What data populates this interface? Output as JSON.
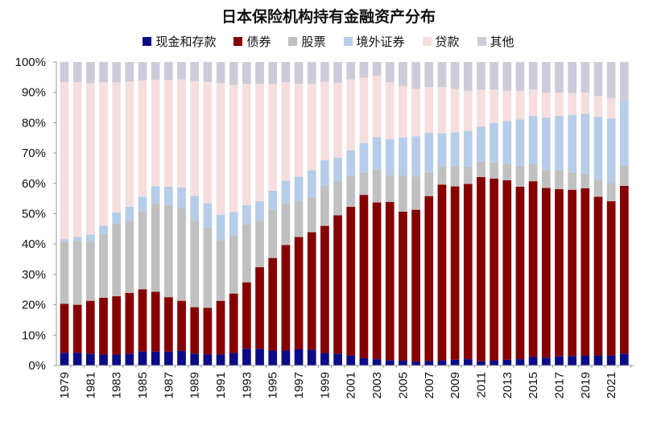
{
  "chart_data": {
    "type": "bar",
    "stacked": true,
    "title": "日本保险机构持有金融资产分布",
    "legend_position": "top",
    "grid": false,
    "ylim": [
      0,
      100
    ],
    "y_ticks": [
      "0%",
      "10%",
      "20%",
      "30%",
      "40%",
      "50%",
      "60%",
      "70%",
      "80%",
      "90%",
      "100%"
    ],
    "categories": [
      "1979",
      "1980",
      "1981",
      "1982",
      "1983",
      "1984",
      "1985",
      "1986",
      "1987",
      "1988",
      "1989",
      "1990",
      "1991",
      "1992",
      "1993",
      "1994",
      "1995",
      "1996",
      "1997",
      "1998",
      "1999",
      "2000",
      "2001",
      "2002",
      "2003",
      "2004",
      "2005",
      "2006",
      "2007",
      "2008",
      "2009",
      "2010",
      "2011",
      "2012",
      "2013",
      "2014",
      "2015",
      "2016",
      "2017",
      "2018",
      "2019",
      "2020",
      "2021",
      "2022"
    ],
    "x_tick_labels": [
      "1979",
      "1981",
      "1983",
      "1985",
      "1987",
      "1989",
      "1991",
      "1993",
      "1995",
      "1997",
      "1999",
      "2001",
      "2003",
      "2005",
      "2007",
      "2009",
      "2011",
      "2013",
      "2015",
      "2017",
      "2019",
      "2021"
    ],
    "series": [
      {
        "name": "现金和存款",
        "color": "#0b0b86",
        "values": [
          4.2,
          4.2,
          3.9,
          3.6,
          3.6,
          3.9,
          4.6,
          4.6,
          4.6,
          4.8,
          3.9,
          3.6,
          3.6,
          4.1,
          5.5,
          5.5,
          4.9,
          4.9,
          5.3,
          5.2,
          4.1,
          3.9,
          3.3,
          2.4,
          2.1,
          1.7,
          1.6,
          1.3,
          1.5,
          1.6,
          1.9,
          2.1,
          1.4,
          1.6,
          1.9,
          2.1,
          2.8,
          2.6,
          3.0,
          3.1,
          3.3,
          3.3,
          3.3,
          3.9
        ]
      },
      {
        "name": "债券",
        "color": "#860000",
        "values": [
          16.1,
          15.8,
          17.4,
          18.7,
          19.2,
          20.0,
          20.5,
          19.7,
          17.9,
          16.5,
          15.3,
          15.4,
          17.7,
          19.6,
          21.9,
          26.9,
          30.5,
          34.8,
          37.0,
          38.7,
          41.9,
          45.6,
          49.0,
          53.8,
          51.6,
          52.2,
          49.1,
          50.0,
          54.3,
          58.0,
          57.1,
          57.7,
          60.7,
          60.0,
          59.1,
          56.8,
          57.9,
          55.9,
          55.1,
          54.8,
          55.1,
          52.3,
          50.8,
          55.3
        ]
      },
      {
        "name": "股票",
        "color": "#c0c0c0",
        "values": [
          20.3,
          21.0,
          19.4,
          20.9,
          24.0,
          23.8,
          25.6,
          29.1,
          30.3,
          30.8,
          28.5,
          26.4,
          20.0,
          18.9,
          19.1,
          15.3,
          15.9,
          13.7,
          11.8,
          11.5,
          13.2,
          11.1,
          10.1,
          7.5,
          11.0,
          8.8,
          12.0,
          11.0,
          7.9,
          6.0,
          6.6,
          5.8,
          5.1,
          5.3,
          5.5,
          6.7,
          5.6,
          6.0,
          6.2,
          5.8,
          4.8,
          5.9,
          6.0,
          6.6
        ]
      },
      {
        "name": "境外证券",
        "color": "#b5cde8",
        "values": [
          1.0,
          1.4,
          2.5,
          2.9,
          3.6,
          4.6,
          4.9,
          5.7,
          6.1,
          6.6,
          8.2,
          8.0,
          8.4,
          8.0,
          6.3,
          6.4,
          6.3,
          7.5,
          8.1,
          8.9,
          8.4,
          7.9,
          8.5,
          9.6,
          10.6,
          11.8,
          12.4,
          13.2,
          13.0,
          10.9,
          11.2,
          11.7,
          11.5,
          13.0,
          14.0,
          15.5,
          15.9,
          17.2,
          17.9,
          18.9,
          19.7,
          20.5,
          21.3,
          21.2
        ]
      },
      {
        "name": "贷款",
        "color": "#f6dede",
        "values": [
          51.7,
          50.9,
          49.8,
          47.2,
          42.9,
          41.3,
          38.3,
          35.0,
          35.2,
          35.6,
          37.8,
          40.0,
          43.3,
          41.8,
          40.0,
          38.7,
          35.2,
          32.4,
          30.6,
          28.5,
          25.9,
          24.6,
          23.4,
          21.5,
          20.2,
          18.8,
          17.0,
          15.7,
          15.0,
          15.2,
          14.3,
          13.2,
          12.2,
          11.0,
          10.0,
          9.4,
          8.7,
          8.1,
          7.7,
          7.1,
          7.0,
          6.8,
          6.7,
          0.0
        ]
      },
      {
        "name": "其他",
        "color": "#cdcbd9",
        "values": [
          6.7,
          6.7,
          7.0,
          6.7,
          6.7,
          6.4,
          6.1,
          5.9,
          5.9,
          5.7,
          6.3,
          6.6,
          7.0,
          7.6,
          7.2,
          7.2,
          7.2,
          6.7,
          7.2,
          7.2,
          6.5,
          6.9,
          5.7,
          5.2,
          4.5,
          6.7,
          7.9,
          8.8,
          8.3,
          8.3,
          8.9,
          9.5,
          9.1,
          9.1,
          9.5,
          9.5,
          9.1,
          10.2,
          10.1,
          10.3,
          10.1,
          11.2,
          11.9,
          13.0
        ]
      }
    ]
  }
}
